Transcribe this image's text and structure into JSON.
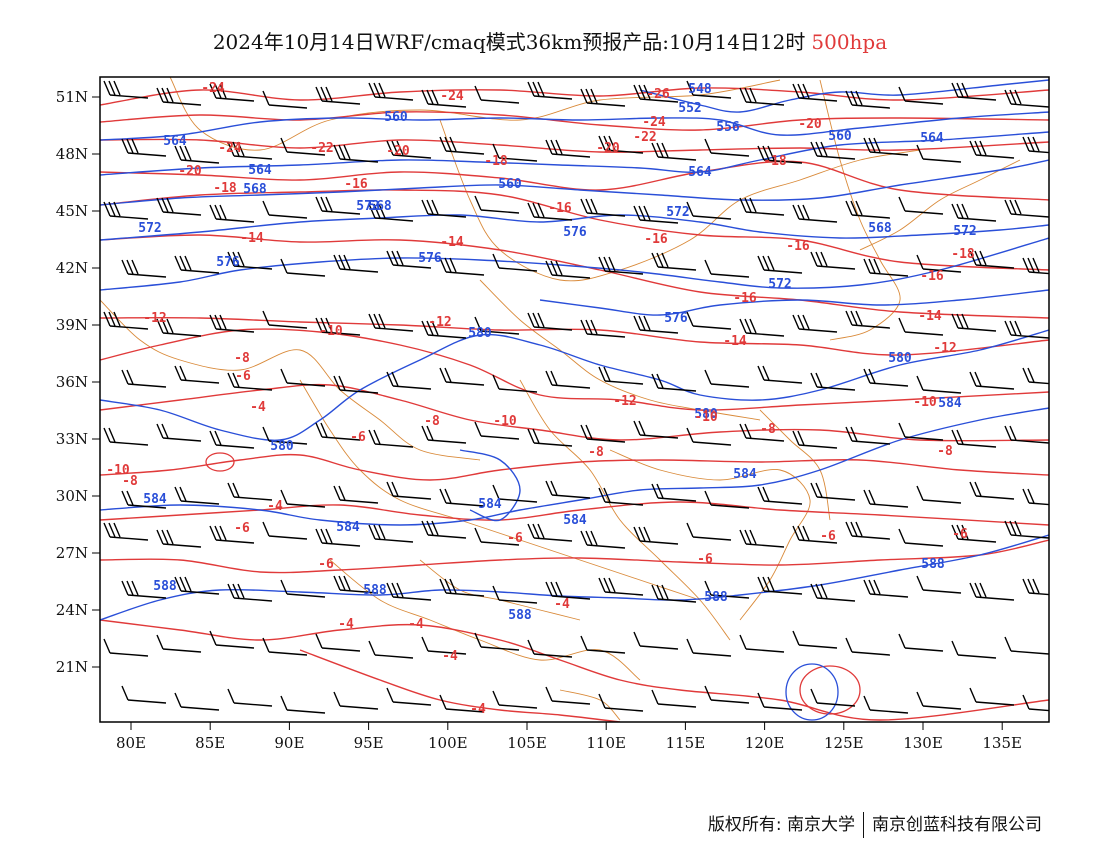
{
  "title": {
    "text": "2024年10月14日WRF/cmaq模式36km预报产品:10月14日12时",
    "level": "500hpa"
  },
  "axes": {
    "x_ticks": [
      "80E",
      "85E",
      "90E",
      "95E",
      "100E",
      "105E",
      "110E",
      "115E",
      "120E",
      "125E",
      "130E",
      "135E"
    ],
    "y_ticks": [
      "51N",
      "48N",
      "45N",
      "42N",
      "39N",
      "36N",
      "33N",
      "30N",
      "27N",
      "24N",
      "21N"
    ]
  },
  "colors": {
    "temperature_contour": "#e03a3a",
    "height_contour": "#2a4fd8",
    "boundary": "#d98a3a",
    "wind_barb": "#000000",
    "frame": "#000000"
  },
  "height_labels": [
    "548",
    "552",
    "556",
    "560",
    "564",
    "568",
    "572",
    "576",
    "580",
    "584",
    "588"
  ],
  "temperature_labels": [
    "-26",
    "-24",
    "-22",
    "-20",
    "-18",
    "-16",
    "-14",
    "-12",
    "-10",
    "-8",
    "-6",
    "-4"
  ],
  "footer": {
    "left": "版权所有: 南京大学",
    "right": "南京创蓝科技有限公司"
  }
}
